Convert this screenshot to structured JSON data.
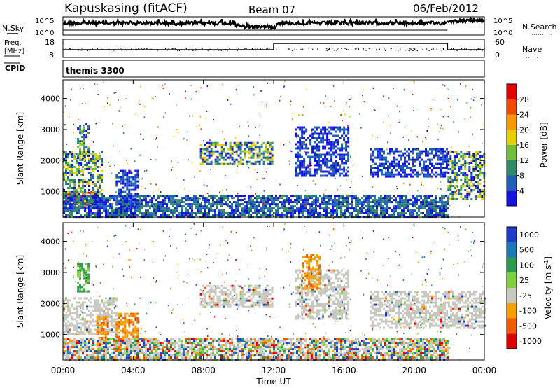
{
  "header": {
    "title": "Kapuskasing (fitACF)",
    "beam": "Beam 07",
    "date": "06/Feb/2012"
  },
  "noise_panel": {
    "left_label": "N.Sky",
    "right_label": "N.Search",
    "left_ticks": [
      "10^5",
      "10^0"
    ],
    "right_ticks": [
      "10^5",
      "10^0"
    ]
  },
  "freq_panel": {
    "left_label_1": "Freq.",
    "left_label_2": "[MHz]",
    "right_label": "Nave",
    "left_ticks": [
      "18",
      "8"
    ],
    "right_ticks": [
      "60",
      "0"
    ]
  },
  "cpid_panel": {
    "label": "CPID",
    "text": "themis 3300"
  },
  "chart_data": [
    {
      "type": "heatmap",
      "panel": "power",
      "ylabel": "Slant Range [km]",
      "yticks": [
        "1000",
        "2000",
        "3000",
        "4000"
      ],
      "ytick_values": [
        1000,
        2000,
        3000,
        4000
      ],
      "ylim": [
        180,
        4600
      ],
      "xlim": [
        0,
        24
      ],
      "colorbar_label": "Power [dB]",
      "colorbar_ticks": [
        "4",
        "8",
        "12",
        "16",
        "20",
        "24",
        "28"
      ],
      "colorbar_values": [
        4,
        8,
        12,
        16,
        20,
        24,
        28
      ],
      "colorbar_range": [
        0,
        32
      ],
      "colors": [
        "#1414e0",
        "#1f5fb4",
        "#2f8a68",
        "#6fbe3c",
        "#e8d000",
        "#f59a00",
        "#f04a00",
        "#e80000"
      ],
      "regions": [
        {
          "t0": 0.0,
          "t1": 1.9,
          "r0": 500,
          "r1": 1000,
          "level": "high"
        },
        {
          "t0": 0.0,
          "t1": 2.2,
          "r0": 700,
          "r1": 2300,
          "level": "mid"
        },
        {
          "t0": 0.8,
          "t1": 1.5,
          "r0": 2000,
          "r1": 3200,
          "level": "mid"
        },
        {
          "t0": 3.0,
          "t1": 4.2,
          "r0": 400,
          "r1": 1700,
          "level": "low"
        },
        {
          "t0": 7.8,
          "t1": 11.9,
          "r0": 1900,
          "r1": 2600,
          "level": "mid"
        },
        {
          "t0": 13.2,
          "t1": 16.2,
          "r0": 1500,
          "r1": 3100,
          "level": "low"
        },
        {
          "t0": 17.5,
          "t1": 21.9,
          "r0": 1500,
          "r1": 2400,
          "level": "low"
        },
        {
          "t0": 21.9,
          "t1": 24.0,
          "r0": 800,
          "r1": 2300,
          "level": "mid"
        },
        {
          "t0": 0.0,
          "t1": 21.9,
          "r0": 200,
          "r1": 900,
          "level": "ground"
        }
      ]
    },
    {
      "type": "heatmap",
      "panel": "velocity",
      "ylabel": "Slant Range [km]",
      "yticks": [
        "1000",
        "2000",
        "3000",
        "4000"
      ],
      "ytick_values": [
        1000,
        2000,
        3000,
        4000
      ],
      "ylim": [
        180,
        4600
      ],
      "xlim": [
        0,
        24
      ],
      "colorbar_label": "Velocity",
      "colorbar_unit": "[m s",
      "colorbar_unit_exp": "-1",
      "colorbar_unit_close": "]",
      "colorbar_ticks": [
        "1000",
        "500",
        "100",
        "25",
        "-25",
        "-100",
        "-500",
        "-1000"
      ],
      "colors": [
        "#1e3cc8",
        "#1e78b4",
        "#2e9a50",
        "#7cd23c",
        "#c8c8c0",
        "#f5a000",
        "#f05a00",
        "#e00000"
      ],
      "regions": [
        {
          "t0": 0.0,
          "t1": 3.0,
          "r0": 1000,
          "r1": 2200,
          "level": "gray"
        },
        {
          "t0": 1.9,
          "t1": 2.6,
          "r0": 700,
          "r1": 1600,
          "level": "orange"
        },
        {
          "t0": 0.8,
          "t1": 1.5,
          "r0": 2400,
          "r1": 3300,
          "level": "green"
        },
        {
          "t0": 3.0,
          "t1": 4.2,
          "r0": 400,
          "r1": 1700,
          "level": "orange"
        },
        {
          "t0": 7.8,
          "t1": 11.9,
          "r0": 1900,
          "r1": 2600,
          "level": "gray"
        },
        {
          "t0": 13.2,
          "t1": 16.2,
          "r0": 1500,
          "r1": 3100,
          "level": "gray"
        },
        {
          "t0": 13.6,
          "t1": 14.6,
          "r0": 2500,
          "r1": 3600,
          "level": "orange"
        },
        {
          "t0": 17.5,
          "t1": 24.0,
          "r0": 1200,
          "r1": 2400,
          "level": "gray"
        },
        {
          "t0": 0.0,
          "t1": 21.9,
          "r0": 200,
          "r1": 900,
          "level": "ground"
        }
      ]
    }
  ],
  "xaxis": {
    "label": "Time UT",
    "ticks": [
      "00:00",
      "04:00",
      "08:00",
      "12:00",
      "16:00",
      "20:00",
      "00:00"
    ],
    "tick_hours": [
      0,
      4,
      8,
      12,
      16,
      20,
      24
    ]
  }
}
